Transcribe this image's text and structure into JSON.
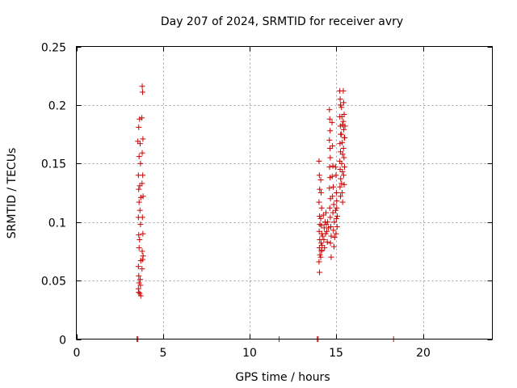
{
  "chart_data": {
    "type": "scatter",
    "title": "Day 207 of 2024, SRMTID for receiver avry",
    "xlabel": "GPS time / hours",
    "ylabel": "SRMTID / TECUs",
    "xlim": [
      0,
      24
    ],
    "ylim": [
      0,
      0.25
    ],
    "x_ticks": [
      0,
      5,
      10,
      15,
      20
    ],
    "x_tick_labels": [
      "0",
      "5",
      "10",
      "15",
      "20"
    ],
    "y_ticks": [
      0,
      0.05,
      0.1,
      0.15,
      0.2,
      0.25
    ],
    "y_tick_labels": [
      "0",
      "0.05",
      "0.1",
      "0.15",
      "0.2",
      "0.25"
    ],
    "grid": true,
    "marker": "plus",
    "color": "#cc0000",
    "series": [
      {
        "points": [
          [
            3.5,
            0
          ],
          [
            3.55,
            0
          ],
          [
            11.7,
            0
          ],
          [
            13.9,
            0
          ],
          [
            13.95,
            0
          ],
          [
            18.3,
            0
          ],
          [
            3.55,
            0.169
          ],
          [
            3.6,
            0.181
          ],
          [
            3.62,
            0.156
          ],
          [
            3.58,
            0.14
          ],
          [
            3.6,
            0.128
          ],
          [
            3.62,
            0.117
          ],
          [
            3.58,
            0.104
          ],
          [
            3.6,
            0.089
          ],
          [
            3.62,
            0.078
          ],
          [
            3.58,
            0.062
          ],
          [
            3.6,
            0.054
          ],
          [
            3.62,
            0.048
          ],
          [
            3.58,
            0.043
          ],
          [
            3.6,
            0.04
          ],
          [
            3.65,
            0.188
          ],
          [
            3.68,
            0.167
          ],
          [
            3.7,
            0.15
          ],
          [
            3.66,
            0.131
          ],
          [
            3.72,
            0.121
          ],
          [
            3.67,
            0.11
          ],
          [
            3.7,
            0.098
          ],
          [
            3.65,
            0.085
          ],
          [
            3.72,
            0.067
          ],
          [
            3.68,
            0.051
          ],
          [
            3.7,
            0.046
          ],
          [
            3.66,
            0.039
          ],
          [
            3.72,
            0.037
          ],
          [
            3.8,
            0.216
          ],
          [
            3.82,
            0.211
          ],
          [
            3.78,
            0.189
          ],
          [
            3.84,
            0.171
          ],
          [
            3.8,
            0.159
          ],
          [
            3.83,
            0.14
          ],
          [
            3.79,
            0.133
          ],
          [
            3.85,
            0.122
          ],
          [
            3.81,
            0.104
          ],
          [
            3.84,
            0.09
          ],
          [
            3.8,
            0.075
          ],
          [
            3.83,
            0.068
          ],
          [
            3.79,
            0.06
          ],
          [
            3.85,
            0.071
          ],
          [
            14.0,
            0.152
          ],
          [
            14.02,
            0.14
          ],
          [
            14.04,
            0.128
          ],
          [
            14.0,
            0.117
          ],
          [
            14.03,
            0.105
          ],
          [
            14.05,
            0.098
          ],
          [
            14.01,
            0.092
          ],
          [
            14.04,
            0.085
          ],
          [
            14.02,
            0.078
          ],
          [
            14.05,
            0.072
          ],
          [
            14.0,
            0.066
          ],
          [
            14.03,
            0.057
          ],
          [
            14.1,
            0.136
          ],
          [
            14.12,
            0.125
          ],
          [
            14.15,
            0.112
          ],
          [
            14.1,
            0.103
          ],
          [
            14.13,
            0.097
          ],
          [
            14.16,
            0.09
          ],
          [
            14.12,
            0.082
          ],
          [
            14.15,
            0.076
          ],
          [
            14.1,
            0.07
          ],
          [
            14.14,
            0.075
          ],
          [
            14.18,
            0.08
          ],
          [
            14.2,
            0.088
          ],
          [
            14.25,
            0.106
          ],
          [
            14.3,
            0.095
          ],
          [
            14.35,
            0.1
          ],
          [
            14.28,
            0.085
          ],
          [
            14.32,
            0.078
          ],
          [
            14.38,
            0.09
          ],
          [
            14.4,
            0.108
          ],
          [
            14.42,
            0.098
          ],
          [
            14.45,
            0.092
          ],
          [
            14.48,
            0.083
          ],
          [
            14.5,
            0.1
          ],
          [
            14.55,
            0.095
          ],
          [
            14.6,
            0.196
          ],
          [
            14.62,
            0.188
          ],
          [
            14.64,
            0.178
          ],
          [
            14.6,
            0.17
          ],
          [
            14.63,
            0.163
          ],
          [
            14.65,
            0.155
          ],
          [
            14.61,
            0.147
          ],
          [
            14.64,
            0.138
          ],
          [
            14.6,
            0.129
          ],
          [
            14.66,
            0.12
          ],
          [
            14.62,
            0.112
          ],
          [
            14.65,
            0.104
          ],
          [
            14.68,
            0.096
          ],
          [
            14.7,
            0.088
          ],
          [
            14.66,
            0.082
          ],
          [
            14.7,
            0.07
          ],
          [
            14.75,
            0.185
          ],
          [
            14.78,
            0.165
          ],
          [
            14.8,
            0.148
          ],
          [
            14.76,
            0.139
          ],
          [
            14.82,
            0.13
          ],
          [
            14.78,
            0.122
          ],
          [
            14.85,
            0.115
          ],
          [
            14.8,
            0.108
          ],
          [
            14.88,
            0.1
          ],
          [
            14.83,
            0.093
          ],
          [
            14.9,
            0.087
          ],
          [
            14.86,
            0.079
          ],
          [
            14.95,
            0.147
          ],
          [
            14.98,
            0.14
          ],
          [
            15.0,
            0.125
          ],
          [
            15.02,
            0.118
          ],
          [
            14.96,
            0.11
          ],
          [
            15.0,
            0.103
          ],
          [
            15.04,
            0.096
          ],
          [
            14.98,
            0.09
          ],
          [
            15.05,
            0.105
          ],
          [
            15.02,
            0.112
          ],
          [
            15.2,
            0.212
          ],
          [
            15.22,
            0.205
          ],
          [
            15.24,
            0.2
          ],
          [
            15.2,
            0.19
          ],
          [
            15.23,
            0.182
          ],
          [
            15.25,
            0.175
          ],
          [
            15.21,
            0.167
          ],
          [
            15.24,
            0.16
          ],
          [
            15.2,
            0.152
          ],
          [
            15.22,
            0.145
          ],
          [
            15.25,
            0.137
          ],
          [
            15.21,
            0.13
          ],
          [
            15.24,
            0.122
          ],
          [
            15.3,
            0.198
          ],
          [
            15.32,
            0.19
          ],
          [
            15.35,
            0.183
          ],
          [
            15.3,
            0.175
          ],
          [
            15.34,
            0.168
          ],
          [
            15.36,
            0.158
          ],
          [
            15.31,
            0.15
          ],
          [
            15.35,
            0.143
          ],
          [
            15.3,
            0.133
          ],
          [
            15.33,
            0.125
          ],
          [
            15.36,
            0.117
          ],
          [
            15.4,
            0.212
          ],
          [
            15.42,
            0.202
          ],
          [
            15.45,
            0.192
          ],
          [
            15.4,
            0.186
          ],
          [
            15.43,
            0.179
          ],
          [
            15.46,
            0.172
          ],
          [
            15.41,
            0.163
          ],
          [
            15.44,
            0.155
          ],
          [
            15.47,
            0.147
          ],
          [
            15.42,
            0.14
          ],
          [
            15.45,
            0.132
          ],
          [
            15.48,
            0.172
          ],
          [
            15.5,
            0.182
          ]
        ]
      }
    ]
  }
}
